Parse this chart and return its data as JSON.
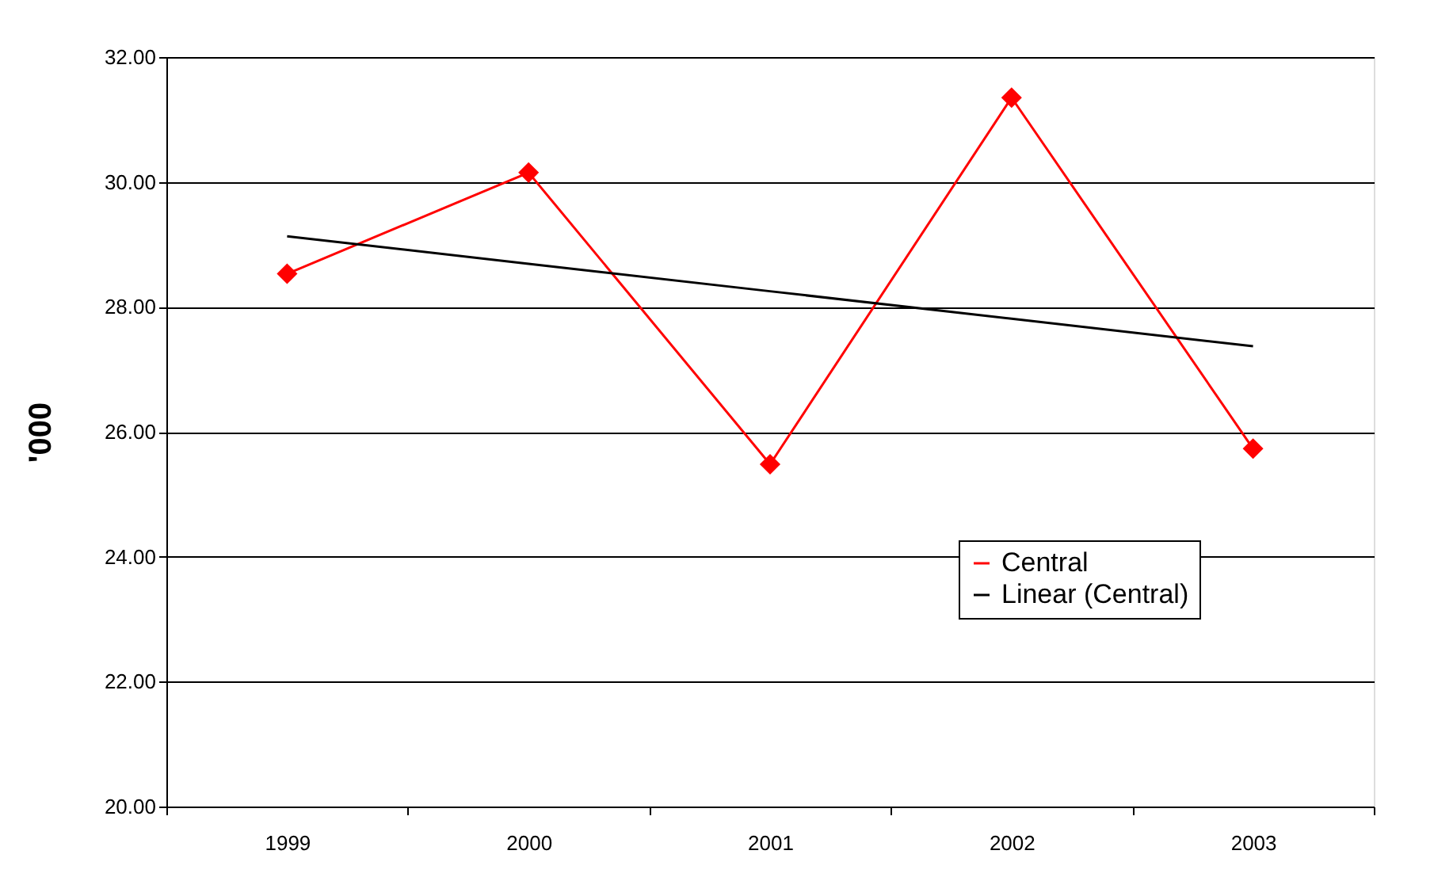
{
  "chart_data": {
    "type": "line",
    "ylabel": "'000",
    "categories": [
      "1999",
      "2000",
      "2001",
      "2002",
      "2003"
    ],
    "series": [
      {
        "name": "Central",
        "color": "#ff0000",
        "marker": "diamond",
        "values": [
          28.53,
          30.15,
          25.48,
          31.35,
          25.73
        ]
      },
      {
        "name": "Linear (Central)",
        "color": "#000000",
        "marker": "none",
        "values": [
          29.13,
          28.69,
          28.25,
          27.81,
          27.37
        ]
      }
    ],
    "ylim": [
      20,
      32
    ],
    "yticks": [
      {
        "value": 20,
        "label": "20.00"
      },
      {
        "value": 22,
        "label": "22.00"
      },
      {
        "value": 24,
        "label": "24.00"
      },
      {
        "value": 26,
        "label": "26.00"
      },
      {
        "value": 28,
        "label": "28.00"
      },
      {
        "value": 30,
        "label": "30.00"
      },
      {
        "value": 32,
        "label": "32.00"
      }
    ],
    "grid": "y",
    "legend": "right"
  }
}
